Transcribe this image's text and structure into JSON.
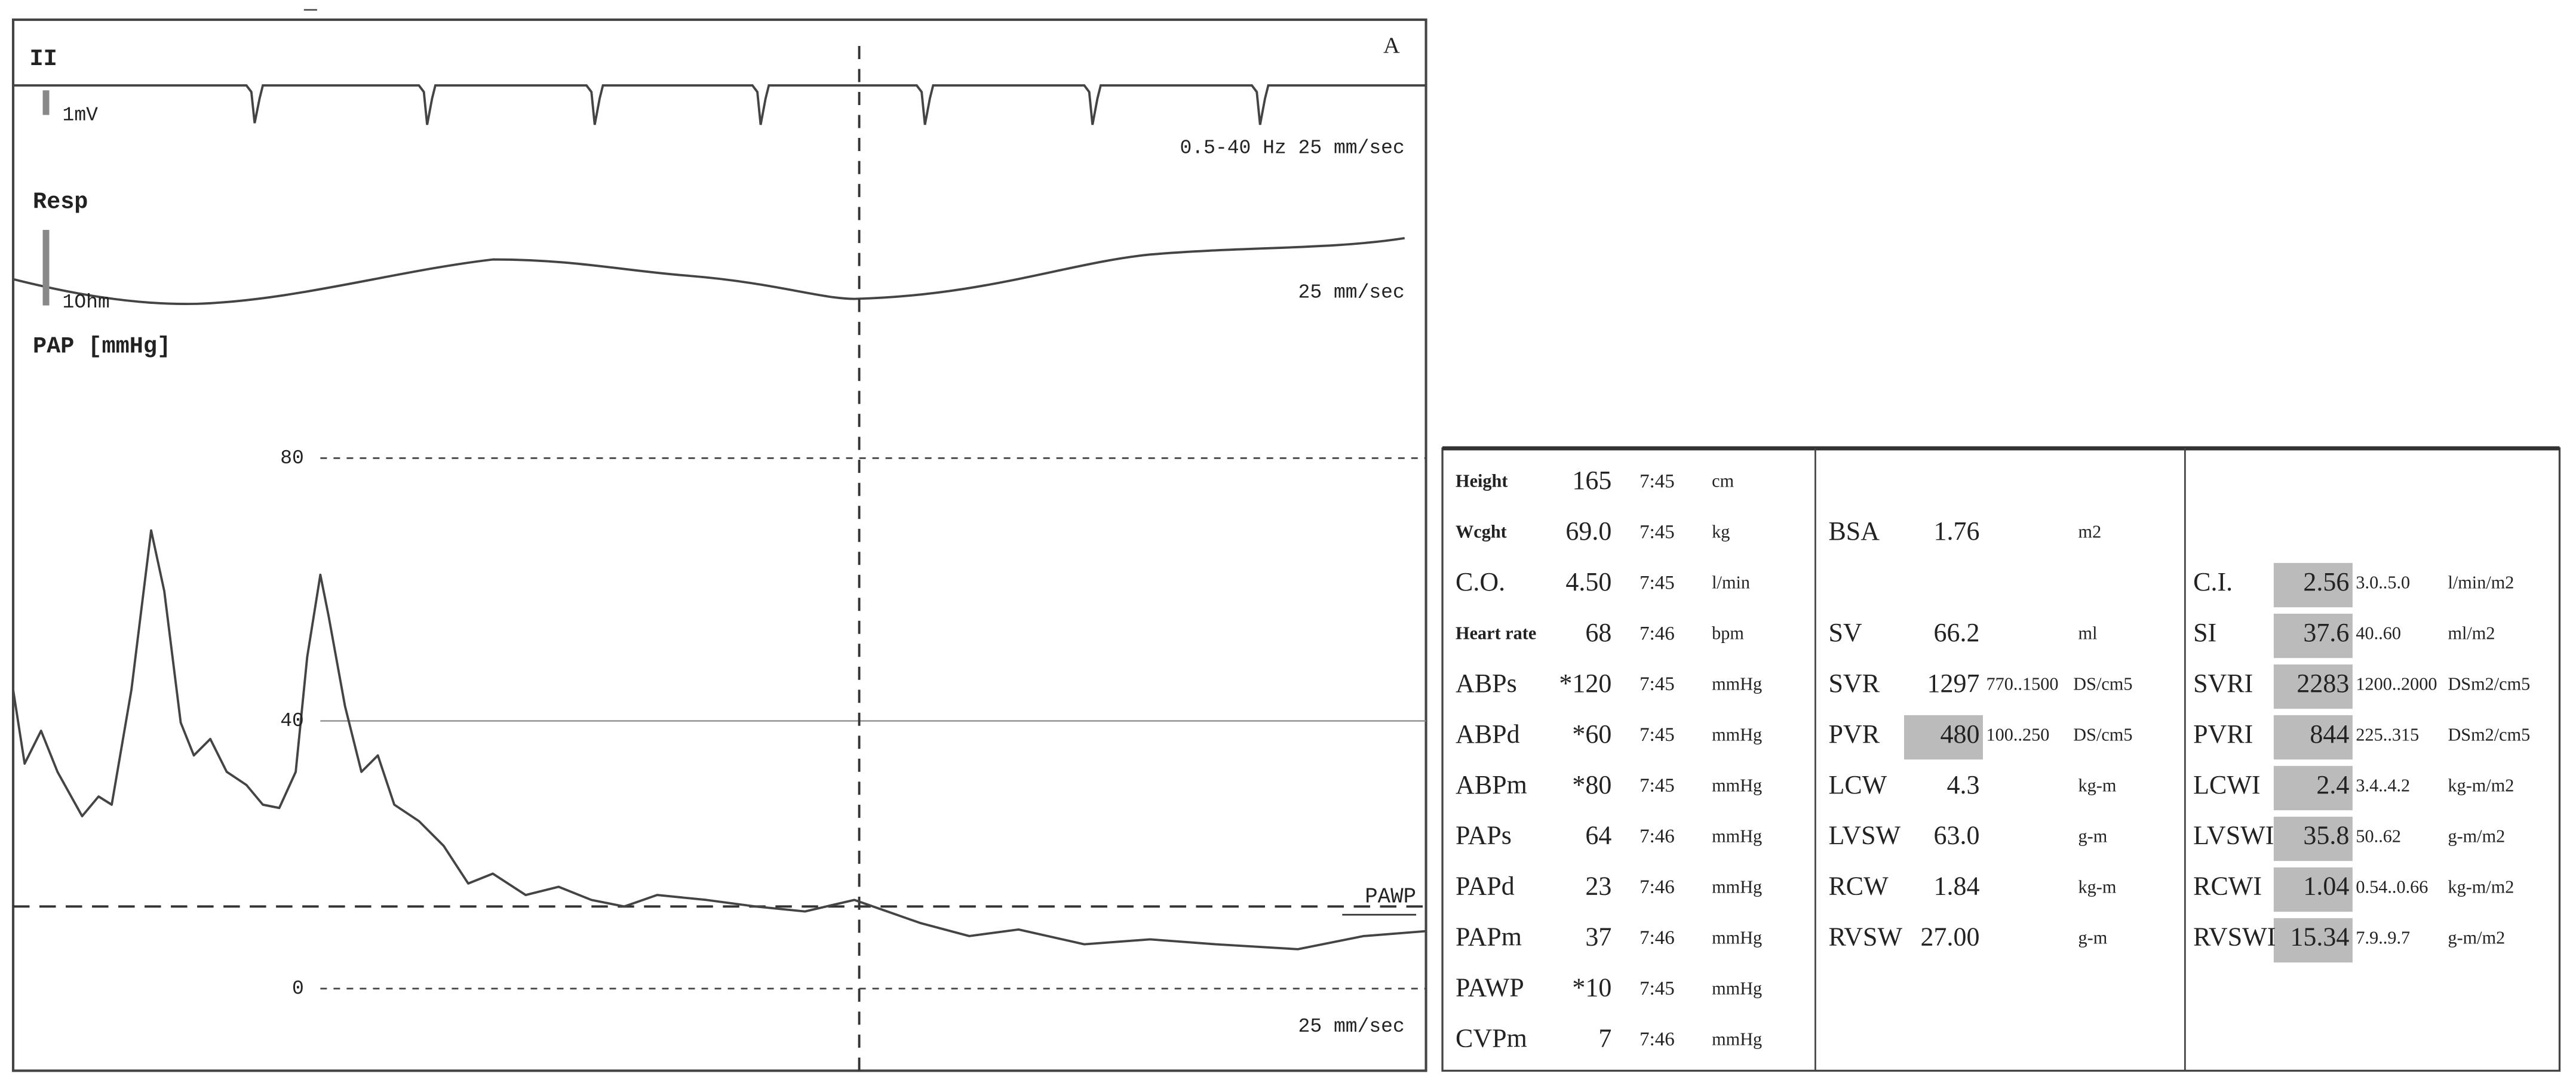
{
  "monitor": {
    "lead": "II",
    "marker": "A",
    "ecg_cal": "1mV",
    "ecg_info": "0.5-40 Hz 25 mm/sec",
    "resp_label": "Resp",
    "resp_cal": "1Ohm",
    "resp_info": "25 mm/sec",
    "pap_label": "PAP [mmHg]",
    "pap_ticks": [
      "80",
      "40",
      "0"
    ],
    "pawp_label": "PAWP",
    "pap_info": "25 mm/sec"
  },
  "table": {
    "col1": [
      {
        "label": "Height",
        "small": true,
        "value": "165",
        "time": "7:45",
        "unit": "cm"
      },
      {
        "label": "Wcght",
        "small": true,
        "value": "69.0",
        "time": "7:45",
        "unit": "kg"
      },
      {
        "label": "C.O.",
        "value": "4.50",
        "time": "7:45",
        "unit": "l/min"
      },
      {
        "label": "Heart rate",
        "small": true,
        "value": "68",
        "time": "7:46",
        "unit": "bpm"
      },
      {
        "label": "ABPs",
        "value": "*120",
        "time": "7:45",
        "unit": "mmHg"
      },
      {
        "label": "ABPd",
        "value": "*60",
        "time": "7:45",
        "unit": "mmHg"
      },
      {
        "label": "ABPm",
        "value": "*80",
        "time": "7:45",
        "unit": "mmHg"
      },
      {
        "label": "PAPs",
        "value": "64",
        "time": "7:46",
        "unit": "mmHg"
      },
      {
        "label": "PAPd",
        "value": "23",
        "time": "7:46",
        "unit": "mmHg"
      },
      {
        "label": "PAPm",
        "value": "37",
        "time": "7:46",
        "unit": "mmHg"
      },
      {
        "label": "PAWP",
        "value": "*10",
        "time": "7:45",
        "unit": "mmHg"
      },
      {
        "label": "CVPm",
        "value": "7",
        "time": "7:46",
        "unit": "mmHg"
      }
    ],
    "col2": [
      {
        "row": 1,
        "label": "BSA",
        "value": "1.76",
        "unit": "m2"
      },
      {
        "row": 3,
        "label": "SV",
        "value": "66.2",
        "unit": "ml"
      },
      {
        "row": 4,
        "label": "SVR",
        "value": "1297",
        "range": "770..1500",
        "unit": "DS/cm5"
      },
      {
        "row": 5,
        "label": "PVR",
        "value": "480",
        "range": "100..250",
        "unit": "DS/cm5",
        "flagged": true
      },
      {
        "row": 6,
        "label": "LCW",
        "value": "4.3",
        "unit": "kg-m"
      },
      {
        "row": 7,
        "label": "LVSW",
        "value": "63.0",
        "unit": "g-m"
      },
      {
        "row": 8,
        "label": "RCW",
        "value": "1.84",
        "unit": "kg-m"
      },
      {
        "row": 9,
        "label": "RVSW",
        "value": "27.00",
        "unit": "g-m"
      }
    ],
    "col3": [
      {
        "row": 2,
        "label": "C.I.",
        "value": "2.56",
        "range": "3.0..5.0",
        "unit": "l/min/m2",
        "flagged": true
      },
      {
        "row": 3,
        "label": "SI",
        "value": "37.6",
        "range": "40..60",
        "unit": "ml/m2",
        "flagged": true
      },
      {
        "row": 4,
        "label": "SVRI",
        "value": "2283",
        "range": "1200..2000",
        "unit": "DSm2/cm5",
        "flagged": true
      },
      {
        "row": 5,
        "label": "PVRI",
        "value": "844",
        "range": "225..315",
        "unit": "DSm2/cm5",
        "flagged": true
      },
      {
        "row": 6,
        "label": "LCWI",
        "value": "2.4",
        "range": "3.4..4.2",
        "unit": "kg-m/m2",
        "flagged": true
      },
      {
        "row": 7,
        "label": "LVSWI",
        "value": "35.8",
        "range": "50..62",
        "unit": "g-m/m2",
        "flagged": true
      },
      {
        "row": 8,
        "label": "RCWI",
        "value": "1.04",
        "range": "0.54..0.66",
        "unit": "kg-m/m2",
        "flagged": true
      },
      {
        "row": 9,
        "label": "RVSWI",
        "value": "15.34",
        "range": "7.9..9.7",
        "unit": "g-m/m2",
        "flagged": true
      }
    ]
  }
}
